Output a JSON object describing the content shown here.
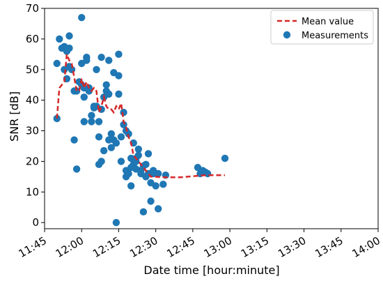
{
  "chart_data": {
    "type": "scatter",
    "xlabel": "Date time [hour:minute]",
    "ylabel": "SNR [dB]",
    "xlim": [
      "11:45",
      "14:00"
    ],
    "ylim": [
      -2,
      70
    ],
    "x_ticks": [
      "11:45",
      "12:00",
      "12:15",
      "12:30",
      "12:45",
      "13:00",
      "13:15",
      "13:30",
      "13:45",
      "14:00"
    ],
    "y_ticks": [
      0,
      10,
      20,
      30,
      40,
      50,
      60,
      70
    ],
    "grid": false,
    "legend": "top-right",
    "colors": {
      "measurements": "#1f77b4",
      "mean": "#d62728"
    },
    "series": [
      {
        "name": "Mean value",
        "type": "line",
        "style": "dashed",
        "points": [
          [
            "11:50",
            34
          ],
          [
            "11:51",
            44
          ],
          [
            "11:53",
            46
          ],
          [
            "11:54",
            55
          ],
          [
            "11:55",
            53
          ],
          [
            "11:56",
            52
          ],
          [
            "11:58",
            43
          ],
          [
            "11:59",
            43
          ],
          [
            "12:00",
            47
          ],
          [
            "12:01",
            44
          ],
          [
            "12:02",
            46
          ],
          [
            "12:03",
            44
          ],
          [
            "12:04",
            43
          ],
          [
            "12:05",
            44
          ],
          [
            "12:06",
            43
          ],
          [
            "12:07",
            36
          ],
          [
            "12:08",
            38
          ],
          [
            "12:09",
            41
          ],
          [
            "12:10",
            38
          ],
          [
            "12:11",
            37
          ],
          [
            "12:12",
            37
          ],
          [
            "12:13",
            36
          ],
          [
            "12:14",
            38
          ],
          [
            "12:15",
            37
          ],
          [
            "12:16",
            39
          ],
          [
            "12:17",
            33
          ],
          [
            "12:18",
            31
          ],
          [
            "12:19",
            28
          ],
          [
            "12:20",
            26
          ],
          [
            "12:21",
            22
          ],
          [
            "12:22",
            21
          ],
          [
            "12:23",
            20
          ],
          [
            "12:24",
            19
          ],
          [
            "12:25",
            18
          ],
          [
            "12:26",
            17
          ],
          [
            "12:27",
            16
          ],
          [
            "12:28",
            15
          ],
          [
            "12:30",
            15
          ],
          [
            "12:32",
            14.8
          ],
          [
            "12:40",
            14.8
          ],
          [
            "12:50",
            15.5
          ],
          [
            "12:58",
            15.5
          ]
        ]
      },
      {
        "name": "Measurements",
        "type": "scatter",
        "points": [
          [
            "11:50",
            34
          ],
          [
            "11:50",
            52
          ],
          [
            "11:51",
            60
          ],
          [
            "11:52",
            57
          ],
          [
            "11:53",
            57.5
          ],
          [
            "11:53",
            50
          ],
          [
            "11:54",
            47
          ],
          [
            "11:54",
            56
          ],
          [
            "11:55",
            57
          ],
          [
            "11:55",
            61
          ],
          [
            "11:55",
            51
          ],
          [
            "11:56",
            50
          ],
          [
            "11:57",
            27
          ],
          [
            "11:57",
            43
          ],
          [
            "11:58",
            17.5
          ],
          [
            "11:58",
            43
          ],
          [
            "11:59",
            46
          ],
          [
            "12:00",
            67
          ],
          [
            "12:00",
            52
          ],
          [
            "12:00",
            45
          ],
          [
            "12:01",
            44
          ],
          [
            "12:01",
            33
          ],
          [
            "12:01",
            41
          ],
          [
            "12:02",
            53
          ],
          [
            "12:02",
            54
          ],
          [
            "12:03",
            44
          ],
          [
            "12:03",
            43
          ],
          [
            "12:04",
            35
          ],
          [
            "12:04",
            33
          ],
          [
            "12:05",
            38
          ],
          [
            "12:05",
            37.5
          ],
          [
            "12:06",
            38
          ],
          [
            "12:06",
            50
          ],
          [
            "12:07",
            19
          ],
          [
            "12:07",
            28
          ],
          [
            "12:07",
            33
          ],
          [
            "12:08",
            54
          ],
          [
            "12:08",
            20
          ],
          [
            "12:08",
            37
          ],
          [
            "12:09",
            23.5
          ],
          [
            "12:09",
            41
          ],
          [
            "12:10",
            43
          ],
          [
            "12:10",
            45
          ],
          [
            "12:11",
            27
          ],
          [
            "12:11",
            53
          ],
          [
            "12:11",
            42
          ],
          [
            "12:12",
            29
          ],
          [
            "12:12",
            24.5
          ],
          [
            "12:13",
            49
          ],
          [
            "12:13",
            27
          ],
          [
            "12:14",
            0
          ],
          [
            "12:14",
            26
          ],
          [
            "12:15",
            48
          ],
          [
            "12:15",
            42
          ],
          [
            "12:15",
            55
          ],
          [
            "12:16",
            20
          ],
          [
            "12:16",
            28
          ],
          [
            "12:17",
            32
          ],
          [
            "12:17",
            36
          ],
          [
            "12:18",
            30
          ],
          [
            "12:18",
            17
          ],
          [
            "12:18",
            15
          ],
          [
            "12:19",
            16
          ],
          [
            "12:19",
            29
          ],
          [
            "12:20",
            21
          ],
          [
            "12:20",
            18
          ],
          [
            "12:20",
            12
          ],
          [
            "12:21",
            26
          ],
          [
            "12:21",
            19
          ],
          [
            "12:22",
            21
          ],
          [
            "12:22",
            17.5
          ],
          [
            "12:22",
            20
          ],
          [
            "12:23",
            22
          ],
          [
            "12:23",
            24
          ],
          [
            "12:24",
            16
          ],
          [
            "12:24",
            17
          ],
          [
            "12:25",
            3.5
          ],
          [
            "12:25",
            18.5
          ],
          [
            "12:26",
            15
          ],
          [
            "12:26",
            19
          ],
          [
            "12:27",
            22.5
          ],
          [
            "12:27",
            16
          ],
          [
            "12:28",
            7
          ],
          [
            "12:28",
            13
          ],
          [
            "12:29",
            17
          ],
          [
            "12:29",
            16
          ],
          [
            "12:30",
            12
          ],
          [
            "12:31",
            4.5
          ],
          [
            "12:31",
            16
          ],
          [
            "12:33",
            12.5
          ],
          [
            "12:34",
            15.5
          ],
          [
            "12:47",
            18
          ],
          [
            "12:48",
            16
          ],
          [
            "12:49",
            17
          ],
          [
            "12:50",
            16.5
          ],
          [
            "12:51",
            16
          ],
          [
            "12:58",
            21
          ]
        ]
      }
    ]
  }
}
